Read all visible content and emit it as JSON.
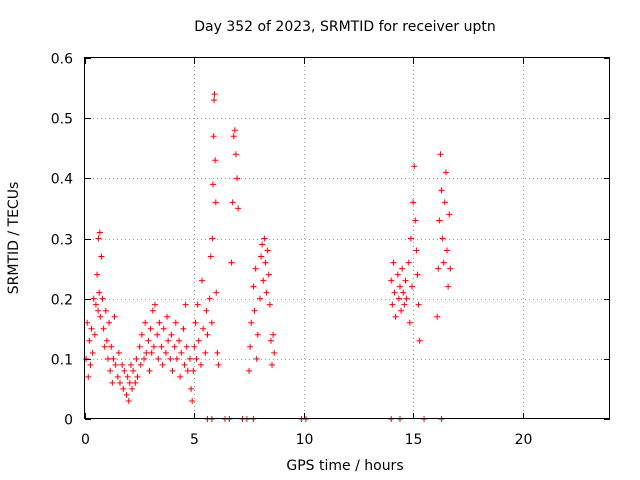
{
  "chart_data": {
    "type": "scatter",
    "title": "Day 352 of 2023, SRMTID for receiver uptn",
    "xlabel": "GPS time / hours",
    "ylabel": "SRMTID / TECUs",
    "xlim": [
      0,
      24
    ],
    "ylim": [
      0,
      0.6
    ],
    "xticks": [
      0,
      5,
      10,
      15,
      20
    ],
    "xtick_labels": [
      "0",
      "5",
      "10",
      "15",
      "20"
    ],
    "yticks": [
      0,
      0.1,
      0.2,
      0.3,
      0.4,
      0.5,
      0.6
    ],
    "ytick_labels": [
      "0",
      "0.1",
      "0.2",
      "0.3",
      "0.4",
      "0.5",
      "0.6"
    ],
    "grid": true,
    "marker": "+",
    "series": [
      {
        "name": "SRMTID",
        "color": "#ff0000",
        "points": [
          [
            0.05,
            0.1
          ],
          [
            0.1,
            0.16
          ],
          [
            0.15,
            0.07
          ],
          [
            0.2,
            0.13
          ],
          [
            0.25,
            0.09
          ],
          [
            0.3,
            0.15
          ],
          [
            0.35,
            0.11
          ],
          [
            0.4,
            0.2
          ],
          [
            0.45,
            0.14
          ],
          [
            0.5,
            0.19
          ],
          [
            0.55,
            0.24
          ],
          [
            0.6,
            0.18
          ],
          [
            0.62,
            0.3
          ],
          [
            0.65,
            0.21
          ],
          [
            0.68,
            0.31
          ],
          [
            0.7,
            0.17
          ],
          [
            0.75,
            0.27
          ],
          [
            0.8,
            0.2
          ],
          [
            0.85,
            0.15
          ],
          [
            0.9,
            0.12
          ],
          [
            0.95,
            0.18
          ],
          [
            1.0,
            0.13
          ],
          [
            1.05,
            0.1
          ],
          [
            1.1,
            0.16
          ],
          [
            1.15,
            0.08
          ],
          [
            1.2,
            0.12
          ],
          [
            1.25,
            0.06
          ],
          [
            1.3,
            0.1
          ],
          [
            1.35,
            0.17
          ],
          [
            1.4,
            0.09
          ],
          [
            1.5,
            0.07
          ],
          [
            1.55,
            0.11
          ],
          [
            1.6,
            0.06
          ],
          [
            1.7,
            0.09
          ],
          [
            1.75,
            0.05
          ],
          [
            1.8,
            0.08
          ],
          [
            1.9,
            0.04
          ],
          [
            1.95,
            0.07
          ],
          [
            2.0,
            0.03
          ],
          [
            2.05,
            0.06
          ],
          [
            2.1,
            0.09
          ],
          [
            2.15,
            0.05
          ],
          [
            2.2,
            0.08
          ],
          [
            2.3,
            0.06
          ],
          [
            2.35,
            0.1
          ],
          [
            2.4,
            0.07
          ],
          [
            2.5,
            0.12
          ],
          [
            2.55,
            0.09
          ],
          [
            2.6,
            0.14
          ],
          [
            2.7,
            0.1
          ],
          [
            2.75,
            0.16
          ],
          [
            2.8,
            0.11
          ],
          [
            2.9,
            0.13
          ],
          [
            2.95,
            0.08
          ],
          [
            3.0,
            0.15
          ],
          [
            3.05,
            0.11
          ],
          [
            3.1,
            0.18
          ],
          [
            3.15,
            0.12
          ],
          [
            3.2,
            0.19
          ],
          [
            3.3,
            0.14
          ],
          [
            3.35,
            0.1
          ],
          [
            3.4,
            0.16
          ],
          [
            3.5,
            0.12
          ],
          [
            3.55,
            0.09
          ],
          [
            3.6,
            0.15
          ],
          [
            3.7,
            0.11
          ],
          [
            3.75,
            0.17
          ],
          [
            3.8,
            0.13
          ],
          [
            3.9,
            0.1
          ],
          [
            3.95,
            0.14
          ],
          [
            4.0,
            0.08
          ],
          [
            4.1,
            0.12
          ],
          [
            4.15,
            0.16
          ],
          [
            4.2,
            0.1
          ],
          [
            4.3,
            0.13
          ],
          [
            4.35,
            0.07
          ],
          [
            4.4,
            0.11
          ],
          [
            4.5,
            0.15
          ],
          [
            4.55,
            0.09
          ],
          [
            4.6,
            0.19
          ],
          [
            4.65,
            0.12
          ],
          [
            4.7,
            0.08
          ],
          [
            4.8,
            0.1
          ],
          [
            4.85,
            0.05
          ],
          [
            4.9,
            0.03
          ],
          [
            4.95,
            0.08
          ],
          [
            5.0,
            0.12
          ],
          [
            5.05,
            0.16
          ],
          [
            5.1,
            0.1
          ],
          [
            5.15,
            0.19
          ],
          [
            5.2,
            0.13
          ],
          [
            5.3,
            0.09
          ],
          [
            5.35,
            0.23
          ],
          [
            5.4,
            0.15
          ],
          [
            5.5,
            0.11
          ],
          [
            5.55,
            0.18
          ],
          [
            5.6,
            0.14
          ],
          [
            5.7,
            0.2
          ],
          [
            5.75,
            0.27
          ],
          [
            5.8,
            0.16
          ],
          [
            5.82,
            0.3
          ],
          [
            5.85,
            0.39
          ],
          [
            5.88,
            0.47
          ],
          [
            5.9,
            0.53
          ],
          [
            5.92,
            0.54
          ],
          [
            5.95,
            0.43
          ],
          [
            5.98,
            0.36
          ],
          [
            6.0,
            0.21
          ],
          [
            6.05,
            0.11
          ],
          [
            6.1,
            0.09
          ],
          [
            6.7,
            0.26
          ],
          [
            6.75,
            0.36
          ],
          [
            6.8,
            0.47
          ],
          [
            6.85,
            0.48
          ],
          [
            6.9,
            0.44
          ],
          [
            6.95,
            0.4
          ],
          [
            7.0,
            0.35
          ],
          [
            7.5,
            0.08
          ],
          [
            7.55,
            0.12
          ],
          [
            7.6,
            0.16
          ],
          [
            7.7,
            0.22
          ],
          [
            7.75,
            0.18
          ],
          [
            7.8,
            0.25
          ],
          [
            7.85,
            0.1
          ],
          [
            7.9,
            0.14
          ],
          [
            8.0,
            0.2
          ],
          [
            8.05,
            0.27
          ],
          [
            8.1,
            0.29
          ],
          [
            8.15,
            0.23
          ],
          [
            8.2,
            0.3
          ],
          [
            8.25,
            0.26
          ],
          [
            8.3,
            0.21
          ],
          [
            8.35,
            0.28
          ],
          [
            8.4,
            0.24
          ],
          [
            8.45,
            0.19
          ],
          [
            8.5,
            0.13
          ],
          [
            8.55,
            0.09
          ],
          [
            8.6,
            0.14
          ],
          [
            8.65,
            0.11
          ],
          [
            14.0,
            0.23
          ],
          [
            14.05,
            0.19
          ],
          [
            14.1,
            0.26
          ],
          [
            14.15,
            0.21
          ],
          [
            14.2,
            0.17
          ],
          [
            14.3,
            0.24
          ],
          [
            14.35,
            0.2
          ],
          [
            14.4,
            0.22
          ],
          [
            14.45,
            0.18
          ],
          [
            14.5,
            0.25
          ],
          [
            14.55,
            0.21
          ],
          [
            14.6,
            0.19
          ],
          [
            14.65,
            0.23
          ],
          [
            14.7,
            0.2
          ],
          [
            14.8,
            0.26
          ],
          [
            14.85,
            0.16
          ],
          [
            14.9,
            0.3
          ],
          [
            14.95,
            0.22
          ],
          [
            15.0,
            0.36
          ],
          [
            15.05,
            0.42
          ],
          [
            15.1,
            0.33
          ],
          [
            15.15,
            0.28
          ],
          [
            15.2,
            0.24
          ],
          [
            15.25,
            0.19
          ],
          [
            15.3,
            0.13
          ],
          [
            16.1,
            0.17
          ],
          [
            16.15,
            0.25
          ],
          [
            16.2,
            0.33
          ],
          [
            16.25,
            0.44
          ],
          [
            16.3,
            0.38
          ],
          [
            16.35,
            0.3
          ],
          [
            16.4,
            0.26
          ],
          [
            16.45,
            0.36
          ],
          [
            16.5,
            0.41
          ],
          [
            16.55,
            0.28
          ],
          [
            16.6,
            0.22
          ],
          [
            16.65,
            0.34
          ],
          [
            16.7,
            0.25
          ]
        ],
        "zero_points": [
          5.6,
          5.8,
          6.4,
          6.6,
          7.2,
          7.4,
          7.7,
          9.9,
          10.1,
          14.0,
          14.4,
          15.5,
          16.3
        ]
      }
    ]
  }
}
